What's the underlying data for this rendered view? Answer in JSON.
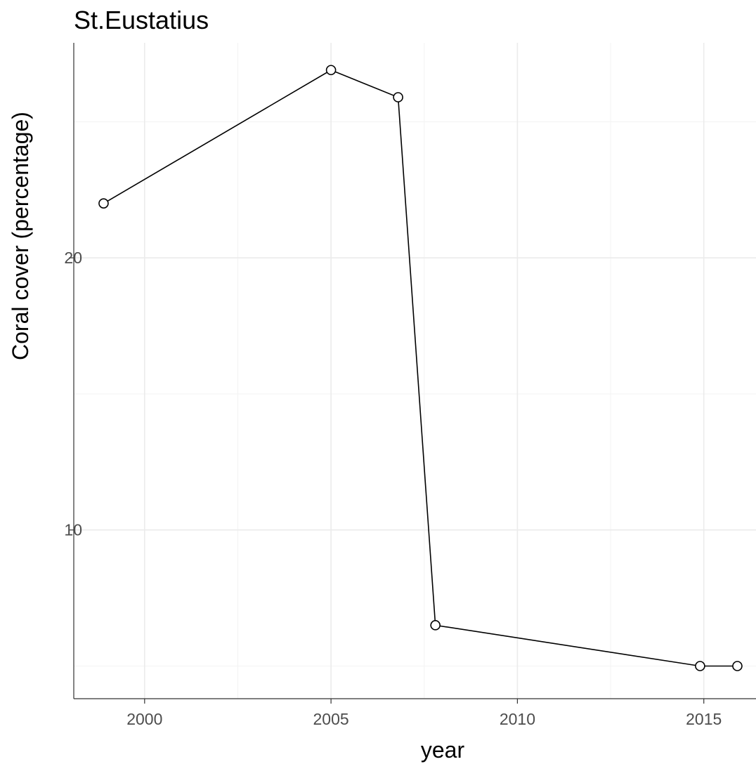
{
  "chart_data": {
    "type": "line",
    "title": "St.Eustatius",
    "xlabel": "year",
    "ylabel": "Coral cover (percentage)",
    "x_ticks": [
      2000,
      2005,
      2010,
      2015
    ],
    "y_ticks": [
      10,
      20
    ],
    "xlim": [
      1998.1,
      2016.4
    ],
    "ylim": [
      3.8,
      27.9
    ],
    "grid": true,
    "legend": "none",
    "series": [
      {
        "x": [
          1998.9,
          2005.0,
          2006.8,
          2007.8,
          2014.9,
          2015.9
        ],
        "y": [
          22.0,
          26.9,
          25.9,
          6.5,
          5.0,
          5.0
        ],
        "color": "#000000",
        "marker": "open-circle"
      }
    ]
  }
}
